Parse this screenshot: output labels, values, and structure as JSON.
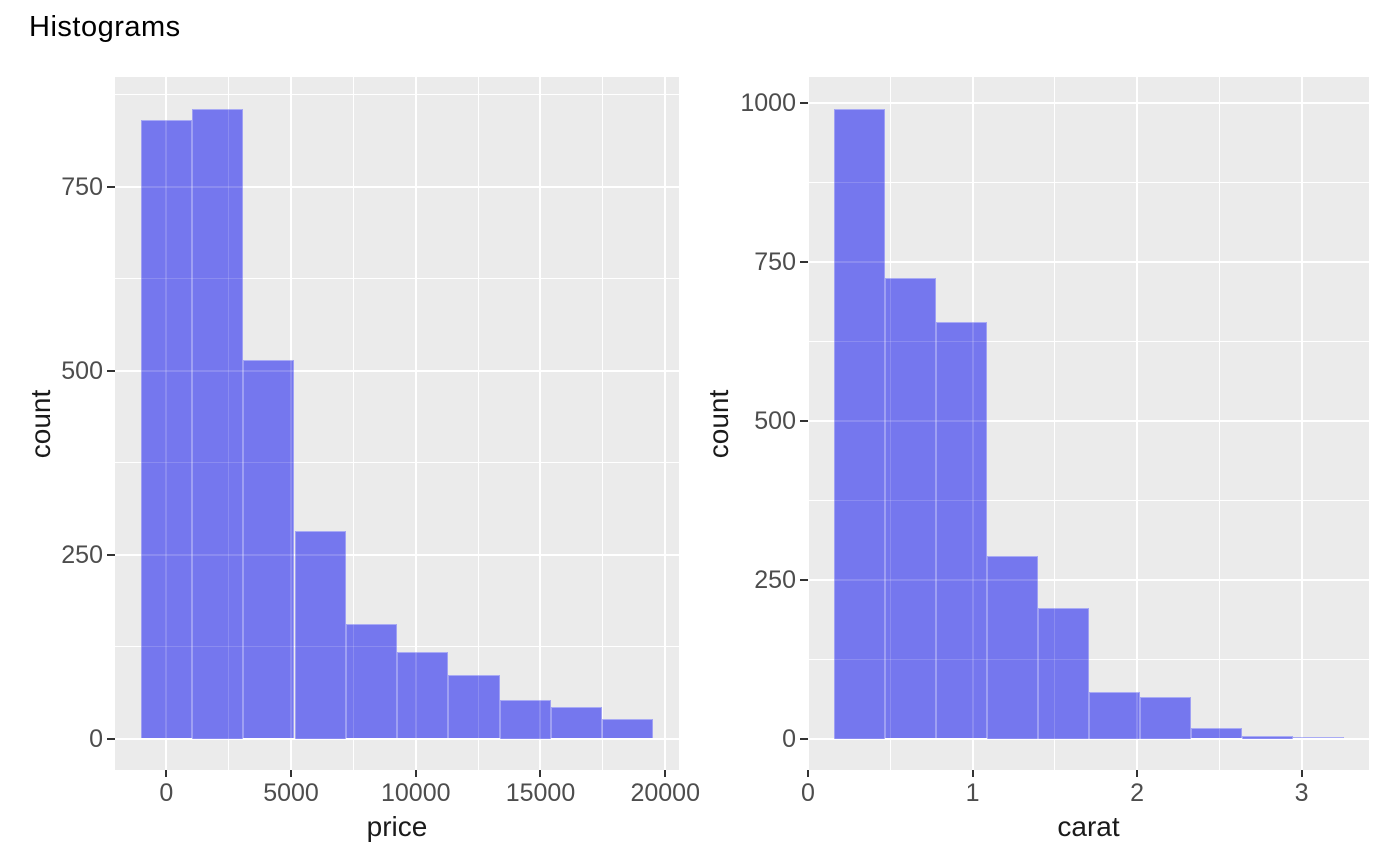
{
  "page_title": "Histograms",
  "colors": {
    "panel_background": "#EBEBEB",
    "gridline": "#FFFFFF",
    "bar_fill": "#7577EE",
    "bar_edge_highlight": "#9B9CF2",
    "axis_tick_text": "#4D4D4D",
    "axis_title_text": "#1A1A1A",
    "tick_mark": "#333333",
    "title_text": "#000000",
    "figure_background": "#FFFFFF"
  },
  "chart_data": [
    {
      "type": "bar",
      "subtype": "histogram",
      "title": "Histograms",
      "xlabel": "price",
      "ylabel": "count",
      "bin_start": -1027.6,
      "bin_width": 2055.2,
      "values": [
        840,
        856,
        514,
        282,
        156,
        117,
        86,
        53,
        43,
        27
      ],
      "xlim": [
        -2055.2,
        20552
      ],
      "ylim": [
        -42.8,
        898.8
      ],
      "x_tick_values": [
        0,
        5000,
        10000,
        15000,
        20000
      ],
      "x_tick_labels": [
        "0",
        "5000",
        "10000",
        "15000",
        "20000"
      ],
      "y_tick_values": [
        0,
        250,
        500,
        750
      ],
      "y_tick_labels": [
        "0",
        "250",
        "500",
        "750"
      ],
      "x_minor": [
        2500,
        7500,
        12500,
        17500
      ],
      "y_minor": [
        125,
        375,
        625,
        875
      ],
      "grid": true,
      "legend": "none"
    },
    {
      "type": "bar",
      "subtype": "histogram",
      "title": "",
      "xlabel": "carat",
      "ylabel": "count",
      "bin_start": 0.155,
      "bin_width": 0.31,
      "values": [
        991,
        724,
        655,
        287,
        206,
        74,
        66,
        16,
        4,
        2
      ],
      "xlim": [
        0.0,
        3.41
      ],
      "ylim": [
        -49.55,
        1040.55
      ],
      "x_tick_values": [
        0,
        1,
        2,
        3
      ],
      "x_tick_labels": [
        "0",
        "1",
        "2",
        "3"
      ],
      "y_tick_values": [
        0,
        250,
        500,
        750,
        1000
      ],
      "y_tick_labels": [
        "0",
        "250",
        "500",
        "750",
        "1000"
      ],
      "x_minor": [
        0.5,
        1.5,
        2.5
      ],
      "y_minor": [
        125,
        375,
        625,
        875
      ],
      "grid": true,
      "legend": "none"
    }
  ]
}
